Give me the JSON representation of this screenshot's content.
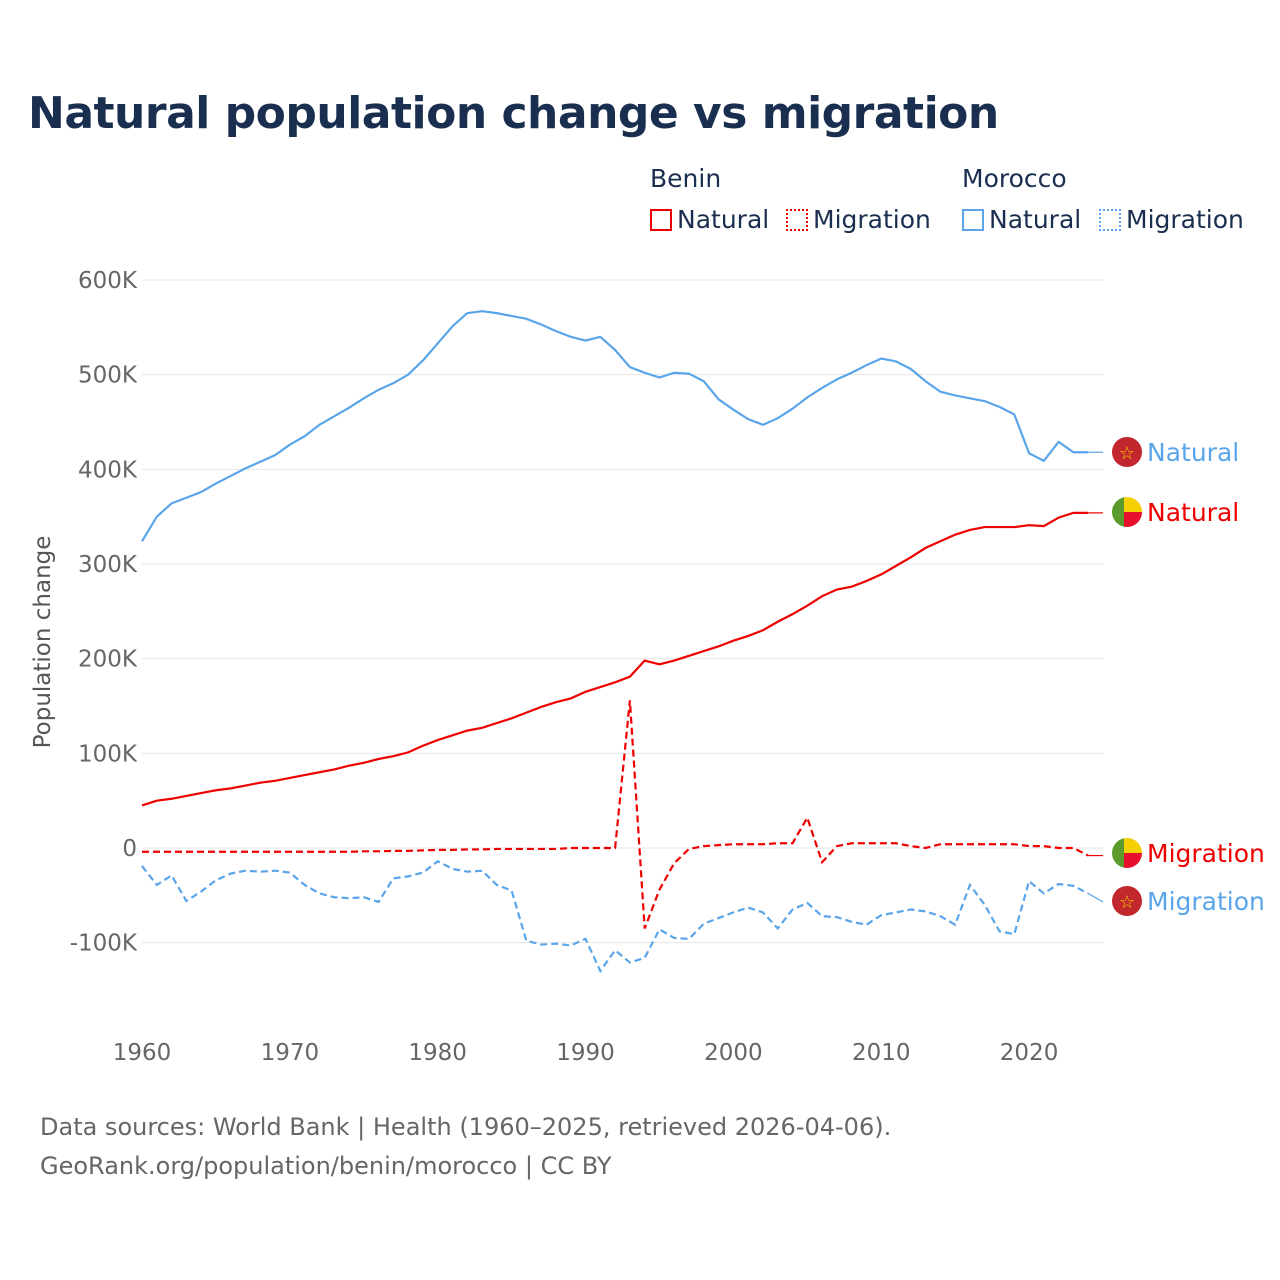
{
  "title": "Natural population change vs migration",
  "legend": {
    "groups": [
      {
        "name": "Benin",
        "color": "#ee0000",
        "items": [
          "Natural",
          "Migration"
        ]
      },
      {
        "name": "Morocco",
        "color": "#5aa5ea",
        "items": [
          "Natural",
          "Migration"
        ]
      }
    ]
  },
  "source_lines": [
    "Data sources: World Bank | Health (1960–2025, retrieved 2026-04-06).",
    "GeoRank.org/population/benin/morocco | CC BY"
  ],
  "chart_data": {
    "type": "line",
    "title": "Natural population change vs migration",
    "xlabel": "",
    "ylabel": "Population change",
    "xlim": [
      1960,
      2025
    ],
    "ylim": [
      -150000,
      620000
    ],
    "x_ticks": [
      1960,
      1970,
      1980,
      1990,
      2000,
      2010,
      2020
    ],
    "y_ticks": [
      {
        "v": -100000,
        "label": "-100K"
      },
      {
        "v": 0,
        "label": "0"
      },
      {
        "v": 100000,
        "label": "100K"
      },
      {
        "v": 200000,
        "label": "200K"
      },
      {
        "v": 300000,
        "label": "300K"
      },
      {
        "v": 400000,
        "label": "400K"
      },
      {
        "v": 500000,
        "label": "500K"
      },
      {
        "v": 600000,
        "label": "600K"
      }
    ],
    "grid": true,
    "x_start": 1960,
    "series": [
      {
        "name": "Morocco Natural",
        "end_label": "Natural",
        "country": "morocco",
        "color": "#5aa5ea",
        "dash": false,
        "values_k": [
          324,
          350,
          364,
          370,
          376,
          385,
          393,
          401,
          408,
          415,
          426,
          435,
          447,
          456,
          465,
          475,
          484,
          491,
          500,
          515,
          533,
          551,
          565,
          567,
          565,
          562,
          559,
          553,
          546,
          540,
          536,
          540,
          526,
          508,
          502,
          497,
          502,
          501,
          493,
          474,
          463,
          453,
          447,
          454,
          464,
          476,
          486,
          495,
          502,
          510,
          517,
          514,
          506,
          493,
          482,
          478,
          475,
          472,
          466,
          458,
          417,
          409,
          429,
          418,
          418,
          418
        ]
      },
      {
        "name": "Benin Natural",
        "end_label": "Natural",
        "country": "benin",
        "color": "#ee0000",
        "dash": false,
        "values_k": [
          45,
          50,
          52,
          55,
          58,
          61,
          63,
          66,
          69,
          71,
          74,
          77,
          80,
          83,
          87,
          90,
          94,
          97,
          101,
          108,
          114,
          119,
          124,
          127,
          132,
          137,
          143,
          149,
          154,
          158,
          165,
          170,
          175,
          181,
          198,
          194,
          198,
          203,
          208,
          213,
          219,
          224,
          230,
          239,
          247,
          256,
          266,
          273,
          276,
          282,
          289,
          298,
          307,
          317,
          324,
          331,
          336,
          339,
          339,
          339,
          341,
          340,
          349,
          354,
          354,
          354
        ]
      },
      {
        "name": "Benin Migration",
        "end_label": "Migration",
        "country": "benin",
        "color": "#ee0000",
        "dash": true,
        "values_k": [
          -4,
          -4,
          -4,
          -4,
          -4,
          -4,
          -4,
          -4,
          -4,
          -4,
          -4,
          -4,
          -4,
          -4,
          -4,
          -3.5,
          -3.5,
          -3,
          -3,
          -2.5,
          -2,
          -2,
          -1.5,
          -1.5,
          -1,
          -1,
          -1,
          -1,
          -1,
          0,
          0,
          0,
          0,
          156,
          -85,
          -44,
          -16,
          -1,
          2,
          3,
          4,
          4,
          4,
          5,
          5,
          32,
          -15,
          2,
          5,
          5,
          5,
          5,
          2,
          0,
          4,
          4,
          4,
          4,
          4,
          4,
          2,
          2,
          0,
          0,
          -8,
          -8
        ]
      },
      {
        "name": "Morocco Migration",
        "end_label": "Migration",
        "country": "morocco",
        "color": "#5aa5ea",
        "dash": true,
        "values_k": [
          -19,
          -39,
          -29,
          -56,
          -46,
          -34,
          -27,
          -24,
          -25,
          -24,
          -26,
          -39,
          -48,
          -52,
          -53,
          -52,
          -57,
          -32,
          -30,
          -26,
          -14,
          -22,
          -25,
          -24,
          -39,
          -45,
          -98,
          -102,
          -101,
          -103,
          -96,
          -130,
          -108,
          -121,
          -116,
          -86,
          -95,
          -96,
          -80,
          -74,
          -68,
          -63,
          -68,
          -85,
          -65,
          -58,
          -72,
          -73,
          -78,
          -81,
          -71,
          -68,
          -65,
          -67,
          -72,
          -81,
          -39,
          -60,
          -88,
          -91,
          -35,
          -48,
          -38,
          -40,
          -48,
          -57
        ]
      }
    ]
  }
}
